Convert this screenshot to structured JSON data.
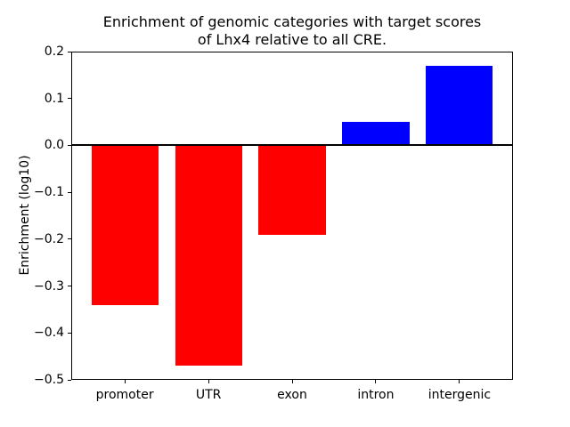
{
  "figure": {
    "title_line1": "Enrichment of genomic categories with target scores",
    "title_line2": "of Lhx4 relative to all CRE."
  },
  "chart_data": {
    "type": "bar",
    "title": "Enrichment of genomic categories with target scores\nof Lhx4 relative to all CRE.",
    "categories": [
      "promoter",
      "UTR",
      "exon",
      "intron",
      "intergenic"
    ],
    "values": [
      -0.34,
      -0.47,
      -0.19,
      0.05,
      0.17
    ],
    "bar_colors": [
      "#ff0000",
      "#ff0000",
      "#ff0000",
      "#0000ff",
      "#0000ff"
    ],
    "negative_color": "#ff0000",
    "positive_color": "#0000ff",
    "xlabel": "",
    "ylabel": "Enrichment (log10)",
    "ylim": [
      -0.5,
      0.2
    ],
    "yticks": [
      0.2,
      0.1,
      0.0,
      -0.1,
      -0.2,
      -0.3,
      -0.4,
      -0.5
    ],
    "ytick_labels": [
      "0.2",
      "0.1",
      "0.0",
      "−0.1",
      "−0.2",
      "−0.3",
      "−0.4",
      "−0.5"
    ],
    "grid": false,
    "legend": false,
    "zero_line": true,
    "zero_line_color": "#000000",
    "background_color": "#ffffff",
    "bar_width_fraction": 0.8
  }
}
